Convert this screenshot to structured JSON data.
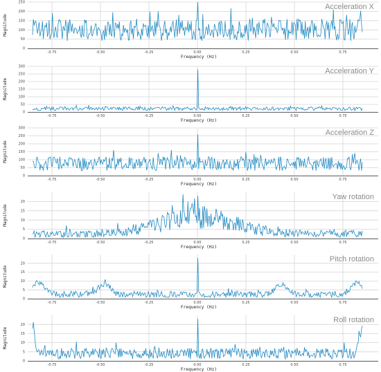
{
  "chart_data": [
    {
      "type": "line",
      "title": "Acceleration X",
      "xlabel": "Frequency (Hz)",
      "ylabel": "Magnitude",
      "xlim": [
        -0.85,
        0.85
      ],
      "ylim": [
        0,
        250
      ],
      "xticks": [
        -0.75,
        -0.5,
        -0.25,
        0.0,
        0.25,
        0.5,
        0.75
      ],
      "xtick_labels": [
        "-0.75",
        "-0.50",
        "-0.25",
        "0.00",
        "0.25",
        "0.50",
        "0.75"
      ],
      "yticks": [
        0,
        50,
        100,
        150,
        200,
        250
      ],
      "grid": true,
      "series": [
        {
          "color": "#1f8ac4",
          "n_points": 400,
          "baseline": 100,
          "noise": 60,
          "peak_at_zero": 250,
          "x": [
            -0.85,
            0.85
          ]
        }
      ]
    },
    {
      "type": "line",
      "title": "Acceleration Y",
      "xlabel": "Frequency (Hz)",
      "ylabel": "Magnitude",
      "xlim": [
        -0.85,
        0.85
      ],
      "ylim": [
        0,
        300
      ],
      "xticks": [
        -0.75,
        -0.5,
        -0.25,
        0.0,
        0.25,
        0.5,
        0.75
      ],
      "xtick_labels": [
        "-0.75",
        "-0.50",
        "-0.25",
        "0.00",
        "0.25",
        "0.50",
        "0.75"
      ],
      "yticks": [
        0,
        50,
        100,
        150,
        200,
        250,
        300
      ],
      "grid": true,
      "series": [
        {
          "color": "#1f8ac4",
          "n_points": 400,
          "baseline": 22,
          "noise": 12,
          "peak_at_zero": 280,
          "x": [
            -0.85,
            0.85
          ]
        }
      ]
    },
    {
      "type": "line",
      "title": "Acceleration Z",
      "xlabel": "Frequency (Hz)",
      "ylabel": "Magnitude",
      "xlim": [
        -0.85,
        0.85
      ],
      "ylim": [
        0,
        300
      ],
      "xticks": [
        -0.75,
        -0.5,
        -0.25,
        0.0,
        0.25,
        0.5,
        0.75
      ],
      "xtick_labels": [
        "-0.75",
        "-0.50",
        "-0.25",
        "0.00",
        "0.25",
        "0.50",
        "0.75"
      ],
      "yticks": [
        0,
        50,
        100,
        150,
        200,
        250,
        300
      ],
      "grid": true,
      "series": [
        {
          "color": "#1f8ac4",
          "n_points": 400,
          "baseline": 75,
          "noise": 45,
          "peak_at_zero": 260,
          "x": [
            -0.85,
            0.85
          ]
        }
      ]
    },
    {
      "type": "line",
      "title": "Yaw rotation",
      "xlabel": "Frequency (Hz)",
      "ylabel": "Magnitude",
      "xlim": [
        -0.85,
        0.85
      ],
      "ylim": [
        0,
        25
      ],
      "xticks": [
        -0.75,
        -0.5,
        -0.25,
        0.0,
        0.25,
        0.5,
        0.75
      ],
      "xtick_labels": [
        "-0.75",
        "-0.50",
        "-0.25",
        "0.00",
        "0.25",
        "0.50",
        "0.75"
      ],
      "yticks": [
        0,
        5,
        10,
        15,
        20
      ],
      "grid": true,
      "series": [
        {
          "color": "#1f8ac4",
          "n_points": 400,
          "baseline": 2.5,
          "noise": 2,
          "center_hump": 9,
          "hump_width": 0.25,
          "peak_at_zero": 23,
          "x": [
            -0.85,
            0.85
          ]
        }
      ]
    },
    {
      "type": "line",
      "title": "Pitch rotation",
      "xlabel": "Frequency (Hz)",
      "ylabel": "Magnitude",
      "xlim": [
        -0.85,
        0.85
      ],
      "ylim": [
        0,
        25
      ],
      "xticks": [
        -0.75,
        -0.5,
        -0.25,
        0.0,
        0.25,
        0.5,
        0.75
      ],
      "xtick_labels": [
        "-0.75",
        "-0.50",
        "-0.25",
        "0.00",
        "0.25",
        "0.50",
        "0.75"
      ],
      "yticks": [
        0,
        5,
        10,
        15,
        20
      ],
      "grid": true,
      "series": [
        {
          "color": "#1f8ac4",
          "n_points": 400,
          "baseline": 2.5,
          "noise": 1.8,
          "side_bumps": [
            -0.82,
            -0.48,
            0.43,
            0.82
          ],
          "bump_height": 6,
          "peak_at_zero": 23,
          "x": [
            -0.85,
            0.85
          ]
        }
      ]
    },
    {
      "type": "line",
      "title": "Roll rotation",
      "xlabel": "Frequency (Hz)",
      "ylabel": "Magnitude",
      "xlim": [
        -0.85,
        0.85
      ],
      "ylim": [
        0,
        25
      ],
      "xticks": [
        -0.75,
        -0.5,
        -0.25,
        0.0,
        0.25,
        0.5,
        0.75
      ],
      "xtick_labels": [
        "-0.75",
        "-0.50",
        "-0.25",
        "0.00",
        "0.25",
        "0.50",
        "0.75"
      ],
      "yticks": [
        0,
        5,
        10,
        15,
        20
      ],
      "grid": true,
      "series": [
        {
          "color": "#1f8ac4",
          "n_points": 400,
          "baseline": 4,
          "noise": 3,
          "edge_bumps": 13,
          "peak_at_zero": 23,
          "x": [
            -0.85,
            0.85
          ]
        }
      ]
    }
  ]
}
